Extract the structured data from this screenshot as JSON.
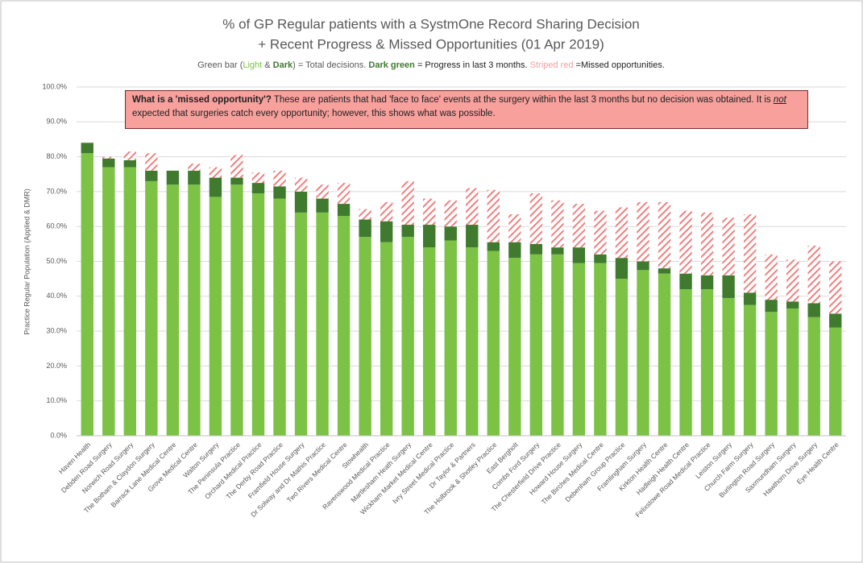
{
  "chart_data": {
    "type": "stacked_bar",
    "title": "% of GP Regular patients with a SystmOne Record Sharing Decision",
    "title_line2": "+ Recent Progress & Missed Opportunities (01 Apr 2019)",
    "subtitle_parts": [
      "Green bar (",
      " & ",
      "Dark",
      ") = Total decisions. ",
      " = Progress in last 3 months. ",
      " =Missed opportunities."
    ],
    "annotation": {
      "heading": "What is a 'missed opportunity'?",
      "text_before": " These are patients that had 'face to face' events at the surgery within the last 3 months but no decision was obtained. It is ",
      "emphasis": "not",
      "text_after": " expected that surgeries catch every opportunity; however, this shows what was possible."
    },
    "y_label": "Practice Regular Population (Applied & DMR)",
    "categories": [
      "Haven Health",
      "Debden Road Surgery",
      "Norwich Road Surgery",
      "The Botham & Claydon Surgery",
      "Barrack Lane Medical Centre",
      "Grove Medical Centre",
      "Walton Surgery",
      "The Peninsula Practice",
      "Orchard Medical Practice",
      "The Derby Road Practice",
      "Framfield House Surgery",
      "Dr Solway and Dr Mathis Practice",
      "Two Rivers Medical Centre",
      "Stowhealth",
      "Ravenswood Medical Practice",
      "Martlesham Heath Surgery",
      "Wickham Market Medical Centre",
      "Ivry Street Medical Practice",
      "Dr Taylor & Partners",
      "The Holbrook & Shotley Practice",
      "East Bergholt",
      "Combs Ford Surgery",
      "The Chesterfield Drive Practice",
      "Howard House Surgery",
      "The Birches Medical Centre",
      "Debenham Group Practice",
      "Framlingham Surgery",
      "Kirkton Health Centre",
      "Hadleigh Health Centre",
      "Felixstowe Road Medical Practice",
      "Leiston Surgery",
      "Church Farm Surgery",
      "Burlington Road Surgery",
      "Saxmundham Surgery",
      "Hawthorn Drive Surgery",
      "Eye Health Centre"
    ],
    "series": [
      {
        "name": "Light",
        "color": "#7cc244",
        "values": [
          81,
          77,
          77,
          73,
          72,
          72,
          68.5,
          72,
          69.5,
          68,
          64,
          64,
          63,
          57,
          55.5,
          57,
          54,
          56,
          54,
          53,
          51,
          52,
          52,
          49.5,
          49.5,
          45,
          47.5,
          46.5,
          42,
          42,
          39.5,
          37.5,
          35.5,
          36.5,
          34,
          31
        ]
      },
      {
        "name": "Dark green",
        "color": "#3f7a2e",
        "values": [
          3,
          2.5,
          2,
          3,
          4,
          4,
          5.5,
          2,
          3,
          3.5,
          6,
          4,
          3.5,
          5,
          6,
          3.5,
          6.5,
          4,
          6.5,
          2.5,
          4.5,
          3,
          2,
          4.5,
          2.5,
          6,
          2.5,
          1.5,
          4.5,
          4,
          6.5,
          3.5,
          3.5,
          2,
          4,
          4
        ]
      },
      {
        "name": "Striped red",
        "color": "#f08080",
        "pattern": "stripes",
        "values": [
          0,
          0.5,
          2.5,
          5,
          0,
          2,
          3,
          6.5,
          3,
          4.5,
          4,
          4,
          6,
          3,
          5.5,
          12.5,
          7.5,
          7.5,
          10.5,
          15,
          8,
          14.5,
          13.5,
          12.5,
          12.5,
          14.5,
          17,
          19,
          18,
          18,
          16.5,
          22.5,
          13,
          12,
          16.5,
          15
        ]
      }
    ],
    "ylim": [
      0,
      100
    ],
    "yticks": [
      {
        "value": 0,
        "label": "0.0%"
      },
      {
        "value": 10,
        "label": "10.0%"
      },
      {
        "value": 20,
        "label": "20.0%"
      },
      {
        "value": 30,
        "label": "30.0%"
      },
      {
        "value": 40,
        "label": "40.0%"
      },
      {
        "value": 50,
        "label": "50.0%"
      },
      {
        "value": 60,
        "label": "60.0%"
      },
      {
        "value": 70,
        "label": "70.0%"
      },
      {
        "value": 80,
        "label": "80.0%"
      },
      {
        "value": 90,
        "label": "90.0%"
      },
      {
        "value": 100,
        "label": "100.0%"
      }
    ],
    "grid": true
  }
}
